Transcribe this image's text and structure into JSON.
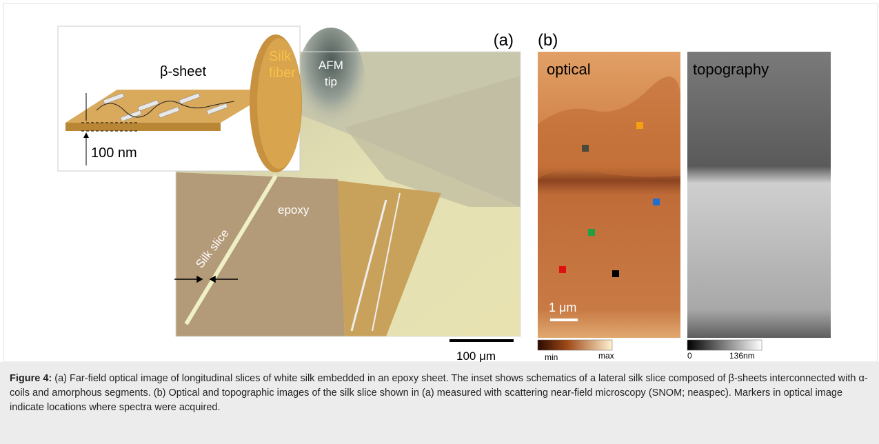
{
  "panel_a": {
    "label": "(a)",
    "afm_tip": [
      "AFM",
      "tip"
    ],
    "epoxy": "epoxy",
    "silk_slice": "Silk slice",
    "scale_bar": "100 μm",
    "inset": {
      "beta_sheet": "β-sheet",
      "silk_fiber": [
        "Silk",
        "fiber"
      ],
      "thickness": "100 nm"
    }
  },
  "panel_b": {
    "label": "(b)",
    "optical": {
      "title": "optical",
      "scale_bar": "1 μm",
      "colorbar_min": "min",
      "colorbar_max": "max"
    },
    "topography": {
      "title": "topography",
      "colorbar_min": "0",
      "colorbar_max": "136nm"
    }
  },
  "caption": {
    "label": "Figure 4:",
    "text": "(a) Far-field optical image of longitudinal slices of white silk embedded in an epoxy sheet. The inset shows schematics of a lateral silk slice composed of β-sheets interconnected with α-coils and amorphous segments. (b) Optical and topographic images of the silk slice shown in (a) measured with scattering near-field microscopy (SNOM; neaspec). Markers in optical image indicate locations where spectra were acquired."
  }
}
